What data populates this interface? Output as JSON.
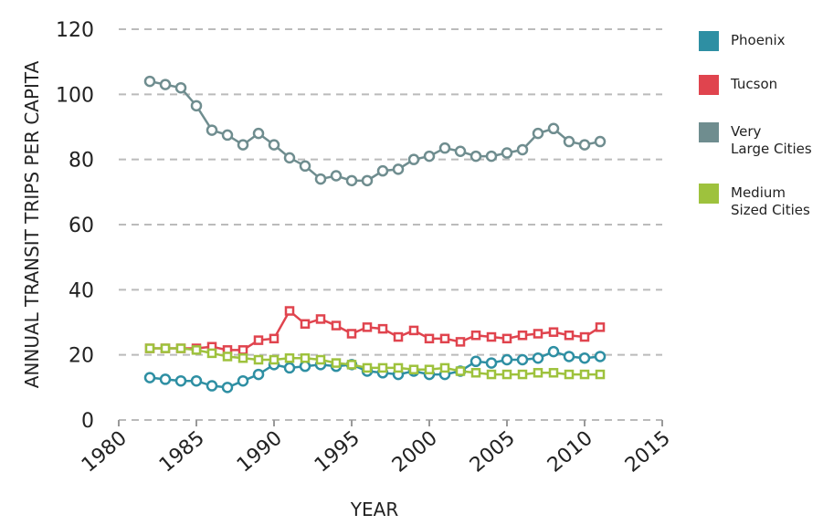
{
  "chart_data": {
    "type": "line",
    "xlabel": "YEAR",
    "ylabel": "ANNUAL TRANSIT TRIPS PER CAPITA",
    "x": [
      1982,
      1983,
      1984,
      1985,
      1986,
      1987,
      1988,
      1989,
      1990,
      1991,
      1992,
      1993,
      1994,
      1995,
      1996,
      1997,
      1998,
      1999,
      2000,
      2001,
      2002,
      2003,
      2004,
      2005,
      2006,
      2007,
      2008,
      2009,
      2010,
      2011
    ],
    "xlim": [
      1980,
      2015
    ],
    "xticks": [
      1980,
      1985,
      1990,
      1995,
      2000,
      2005,
      2010,
      2015
    ],
    "ylim": [
      0,
      120
    ],
    "yticks": [
      0,
      20,
      40,
      60,
      80,
      100,
      120
    ],
    "grid": true,
    "legend": "right",
    "series": [
      {
        "name": "Phoenix",
        "color": "#2e8fa3",
        "marker": "circle",
        "values": [
          13,
          12.5,
          12,
          12,
          10.5,
          10,
          12,
          14,
          17,
          16,
          16.5,
          17,
          16.5,
          17,
          15,
          14.5,
          14,
          15,
          14,
          14,
          15,
          18,
          17.5,
          18.5,
          18.5,
          19,
          21,
          19.5,
          19,
          19.5
        ]
      },
      {
        "name": "Tucson",
        "color": "#e0444e",
        "marker": "square",
        "values": [
          22,
          22,
          22,
          22,
          22.5,
          21.5,
          21.5,
          24.5,
          25,
          33.5,
          29.5,
          31,
          29,
          26.5,
          28.5,
          28,
          25.5,
          27.5,
          25,
          25,
          24,
          26,
          25.5,
          25,
          26,
          26.5,
          27,
          26,
          25.5,
          28.5
        ]
      },
      {
        "name": "Very\nLarge Cities",
        "color": "#6f8d8f",
        "marker": "circle",
        "values": [
          104,
          103,
          102,
          96.5,
          89,
          87.5,
          84.5,
          88,
          84.5,
          80.5,
          78,
          74,
          75,
          73.5,
          73.5,
          76.5,
          77,
          80,
          81,
          83.5,
          82.5,
          81,
          81,
          82,
          83,
          88,
          89.5,
          85.5,
          84.5,
          85.5
        ]
      },
      {
        "name": "Medium\nSized Cities",
        "color": "#9ec23d",
        "marker": "square",
        "values": [
          22,
          22,
          22,
          21.5,
          20.5,
          19.5,
          19,
          18.5,
          18.5,
          19,
          19,
          18.5,
          17.5,
          17,
          16,
          16,
          16,
          15.5,
          15.5,
          16,
          15,
          14.5,
          14,
          14,
          14,
          14.5,
          14.5,
          14,
          14,
          14
        ]
      }
    ]
  }
}
